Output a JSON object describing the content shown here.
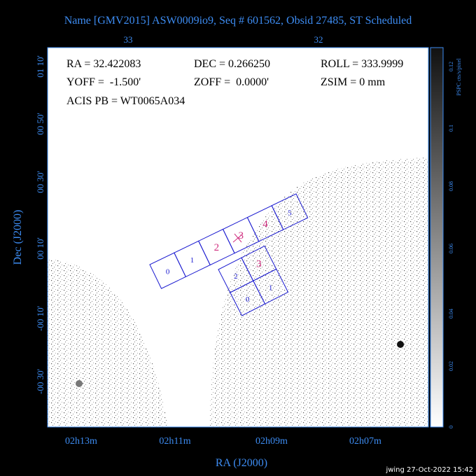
{
  "title": "Name [GMV2015] ASW0009io9, Seq # 601562, Obsid 27485, ST Scheduled",
  "top_axis": {
    "ticks": [
      "33",
      "32"
    ]
  },
  "info": [
    "RA = 32.422083",
    "DEC = 0.266250",
    "ROLL = 333.9999",
    "YOFF =  -1.500'",
    "ZOFF =  0.0000'",
    "ZSIM = 0 mm",
    "ACIS PB = WT0065A034"
  ],
  "y_axis": {
    "label": "Dec (J2000)",
    "ticks": [
      "01 10'",
      "00 50'",
      "00 30'",
      "00 10'",
      "-00 10'",
      "-00 30'"
    ]
  },
  "x_axis": {
    "label": "RA (J2000)",
    "ticks": [
      "02h13m",
      "02h11m",
      "02h09m",
      "02h07m"
    ]
  },
  "colorbar": {
    "label": "PSPC cts/s/pixel",
    "ticks": [
      "0",
      "0.02",
      "0.04",
      "0.06",
      "0.08",
      "0.1",
      "0.12"
    ]
  },
  "acis_s_chips": [
    "0",
    "1",
    "2",
    "3",
    "4",
    "5"
  ],
  "acis_i_chips": [
    "2",
    "3",
    "0",
    "1"
  ],
  "footer": "jwing 27-Oct-2022 15:42"
}
